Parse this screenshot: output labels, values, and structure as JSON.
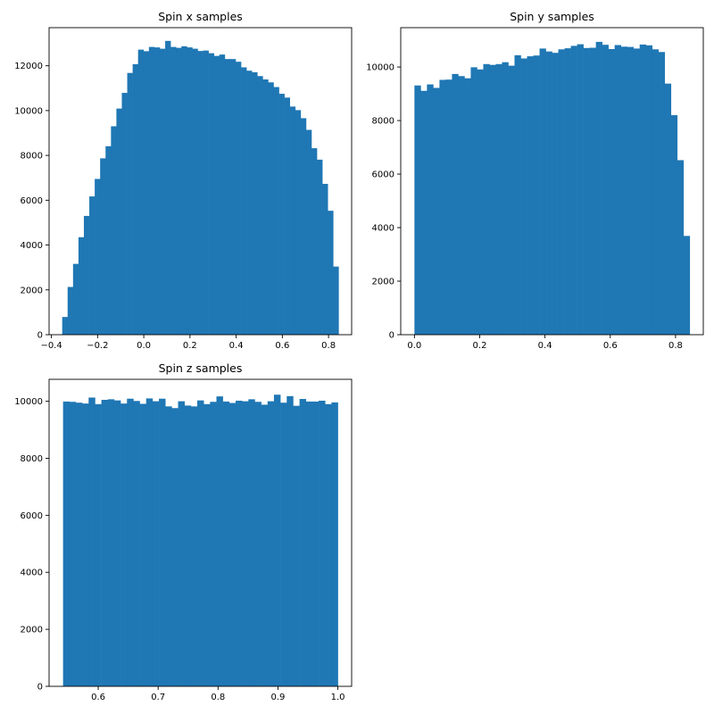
{
  "chart_data": [
    {
      "type": "bar",
      "subtype": "histogram",
      "title": "Spin x samples",
      "xlabel": "",
      "ylabel": "",
      "bin_start": -0.3532,
      "bin_end": 0.8434,
      "xlim": [
        -0.41,
        0.9
      ],
      "ylim": [
        0,
        13700
      ],
      "xticks": [
        -0.4,
        -0.2,
        0.0,
        0.2,
        0.4,
        0.6,
        0.8
      ],
      "xtick_labels": [
        "−0.4",
        "−0.2",
        "0.0",
        "0.2",
        "0.4",
        "0.6",
        "0.8"
      ],
      "yticks": [
        0,
        2000,
        4000,
        6000,
        8000,
        10000,
        12000
      ],
      "ytick_labels": [
        "0",
        "2000",
        "4000",
        "6000",
        "8000",
        "10000",
        "12000"
      ],
      "color": "#1f77b4",
      "grid": false,
      "values": [
        790,
        2130,
        3160,
        4350,
        5300,
        6170,
        6950,
        7870,
        8410,
        9300,
        10090,
        10790,
        11680,
        12070,
        12720,
        12650,
        12840,
        12820,
        12760,
        13110,
        12840,
        12800,
        12870,
        12820,
        12760,
        12660,
        12680,
        12560,
        12440,
        12500,
        12300,
        12300,
        12180,
        11930,
        11780,
        11710,
        11540,
        11390,
        11260,
        11050,
        10750,
        10580,
        10180,
        10020,
        9660,
        9140,
        8320,
        7810,
        6730,
        5530,
        3040
      ]
    },
    {
      "type": "bar",
      "subtype": "histogram",
      "title": "Spin y samples",
      "xlabel": "",
      "ylabel": "",
      "bin_start": 0.0,
      "bin_end": 0.8434,
      "xlim": [
        -0.042,
        0.885
      ],
      "ylim": [
        0,
        11470
      ],
      "xticks": [
        0.0,
        0.2,
        0.4,
        0.6,
        0.8
      ],
      "xtick_labels": [
        "0.0",
        "0.2",
        "0.4",
        "0.6",
        "0.8"
      ],
      "yticks": [
        0,
        2000,
        4000,
        6000,
        8000,
        10000
      ],
      "ytick_labels": [
        "0",
        "2000",
        "4000",
        "6000",
        "8000",
        "10000"
      ],
      "color": "#1f77b4",
      "grid": false,
      "values": [
        9310,
        9110,
        9350,
        9220,
        9520,
        9530,
        9740,
        9660,
        9580,
        9990,
        9910,
        10110,
        10080,
        10110,
        10180,
        10050,
        10440,
        10320,
        10400,
        10430,
        10690,
        10580,
        10530,
        10660,
        10700,
        10790,
        10850,
        10710,
        10720,
        10940,
        10830,
        10670,
        10820,
        10760,
        10750,
        10690,
        10840,
        10810,
        10660,
        10560,
        9380,
        8200,
        6520,
        3690
      ]
    },
    {
      "type": "bar",
      "subtype": "histogram",
      "title": "Spin z samples",
      "xlabel": "",
      "ylabel": "",
      "bin_start": 0.5413,
      "bin_end": 1.0,
      "xlim": [
        0.518,
        1.023
      ],
      "ylim": [
        0,
        10770
      ],
      "xticks": [
        0.6,
        0.7,
        0.8,
        0.9,
        1.0
      ],
      "xtick_labels": [
        "0.6",
        "0.7",
        "0.8",
        "0.9",
        "1.0"
      ],
      "yticks": [
        0,
        2000,
        4000,
        6000,
        8000,
        10000
      ],
      "ytick_labels": [
        "0",
        "2000",
        "4000",
        "6000",
        "8000",
        "10000"
      ],
      "color": "#1f77b4",
      "grid": false,
      "values": [
        9990,
        9980,
        9950,
        9920,
        10130,
        9900,
        10050,
        10070,
        10030,
        9920,
        10090,
        10010,
        9910,
        10100,
        10000,
        10090,
        9820,
        9760,
        10000,
        9850,
        9820,
        10030,
        9900,
        9980,
        10170,
        9990,
        9940,
        10020,
        10000,
        10070,
        9980,
        9880,
        10000,
        10230,
        9950,
        10180,
        9840,
        10080,
        9990,
        9990,
        10020,
        9900,
        9960
      ]
    }
  ]
}
